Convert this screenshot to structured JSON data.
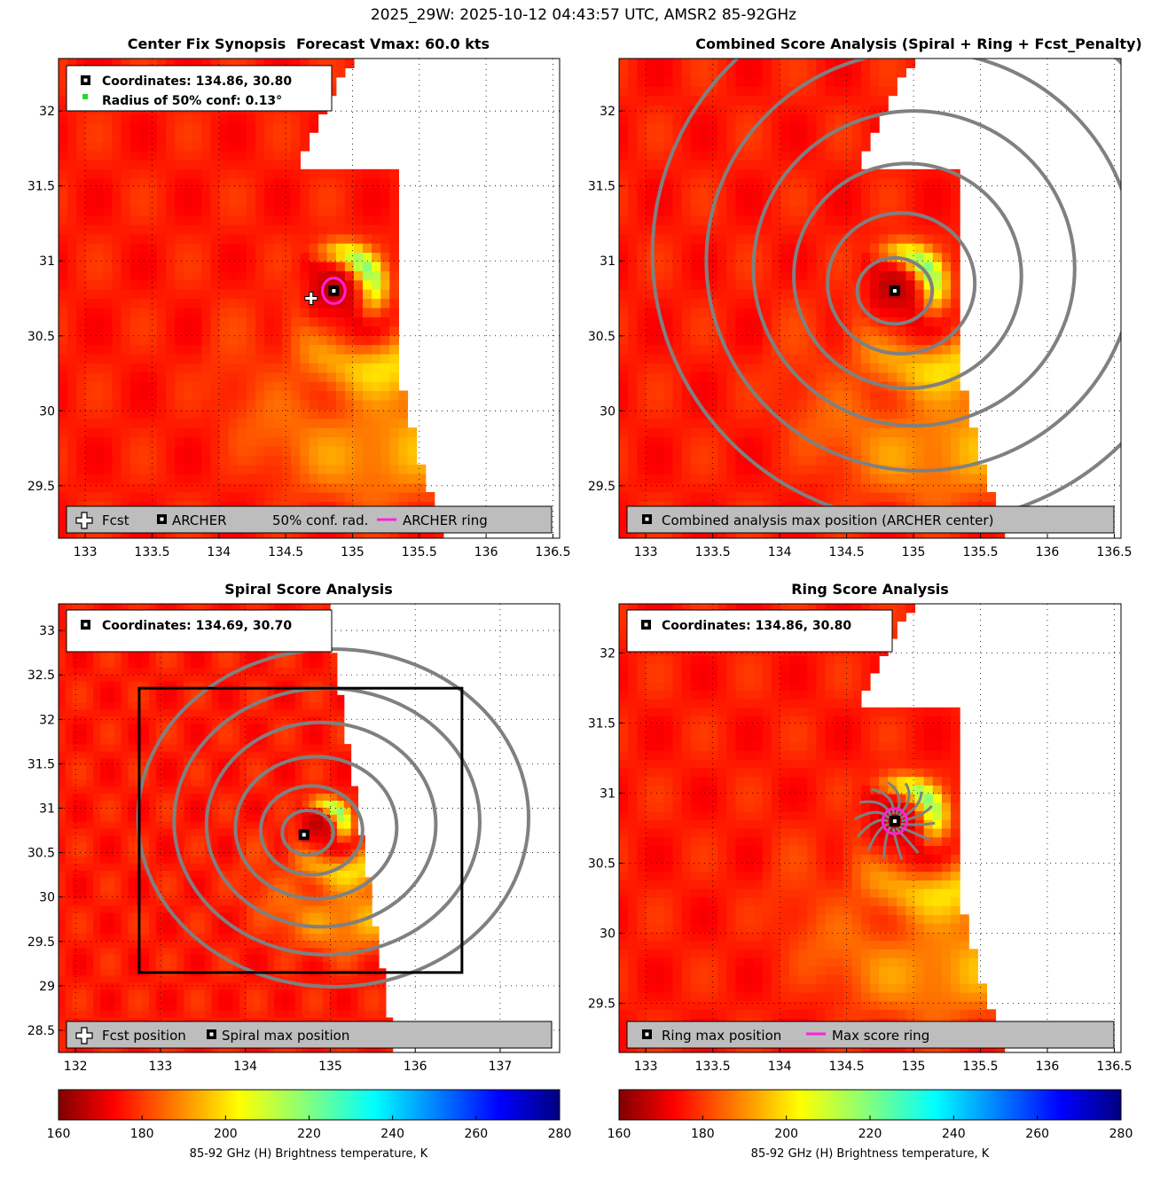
{
  "figure": {
    "title": "2025_29W: 2025-10-12 04:43:57 UTC, AMSR2 85-92GHz"
  },
  "colors": {
    "archer_ring": "#ff22dd",
    "contour": "#808080",
    "legend_bg": "#bdbdbd",
    "box": "#000000"
  },
  "chart_data": [
    {
      "id": "center-fix",
      "type": "heatmap",
      "title_left": "Center Fix Synopsis",
      "title_right": "Forecast Vmax: 60.0 kts",
      "xlim": [
        132.8,
        136.55
      ],
      "ylim": [
        29.15,
        32.35
      ],
      "xticks": [
        133,
        133.5,
        134,
        134.5,
        135,
        135.5,
        136,
        136.5
      ],
      "xtick_labels": [
        "133",
        "133.5",
        "134",
        "134.5",
        "135",
        "135.5",
        "136",
        "136.5"
      ],
      "yticks": [
        29.5,
        30,
        30.5,
        31,
        31.5,
        32
      ],
      "ytick_labels": [
        "29.5",
        "30",
        "30.5",
        "31",
        "31.5",
        "32"
      ],
      "center": [
        134.86,
        30.8
      ],
      "archer_ring_radius_deg": 0.085,
      "conf_radius_deg": 0.13,
      "forecast_position": [
        134.69,
        30.75
      ],
      "info_lines": [
        "Coordinates: 134.86, 30.80",
        "Radius of 50% conf: 0.13°"
      ],
      "legend": [
        "Fcst",
        "ARCHER",
        "50% conf. rad.",
        "ARCHER ring"
      ]
    },
    {
      "id": "combined",
      "type": "heatmap",
      "title": "Combined Score Analysis (Spiral + Ring + Fcst_Penalty)",
      "xlim": [
        132.8,
        136.55
      ],
      "ylim": [
        29.15,
        32.35
      ],
      "xticks": [
        133,
        133.5,
        134,
        134.5,
        135,
        135.5,
        136,
        136.5
      ],
      "xtick_labels": [
        "133",
        "133.5",
        "134",
        "134.5",
        "135",
        "135.5",
        "136",
        "136.5"
      ],
      "yticks": [
        29.5,
        30,
        30.5,
        31,
        31.5,
        32
      ],
      "ytick_labels": [
        "29.5",
        "30",
        "30.5",
        "31",
        "31.5",
        "32"
      ],
      "center": [
        134.86,
        30.8
      ],
      "legend": [
        "Combined analysis max position (ARCHER center)"
      ]
    },
    {
      "id": "spiral",
      "type": "heatmap",
      "title": "Spiral Score Analysis",
      "xlim": [
        131.8,
        137.7
      ],
      "ylim": [
        28.25,
        33.3
      ],
      "xticks": [
        132,
        133,
        134,
        135,
        136,
        137
      ],
      "xtick_labels": [
        "132",
        "133",
        "134",
        "135",
        "136",
        "137"
      ],
      "yticks": [
        28.5,
        29,
        29.5,
        30,
        30.5,
        31,
        31.5,
        32,
        32.5,
        33
      ],
      "ytick_labels": [
        "28.5",
        "29",
        "29.5",
        "30",
        "30.5",
        "31",
        "31.5",
        "32",
        "32.5",
        "33"
      ],
      "center": [
        134.69,
        30.7
      ],
      "search_box": [
        132.75,
        29.15,
        136.55,
        32.35
      ],
      "info_lines": [
        "Coordinates: 134.69, 30.70"
      ],
      "legend": [
        "Fcst position",
        "Spiral max position"
      ]
    },
    {
      "id": "ring",
      "type": "heatmap",
      "title": "Ring Score Analysis",
      "xlim": [
        132.8,
        136.55
      ],
      "ylim": [
        29.15,
        32.35
      ],
      "xticks": [
        133,
        133.5,
        134,
        134.5,
        135,
        135.5,
        136,
        136.5
      ],
      "xtick_labels": [
        "133",
        "133.5",
        "134",
        "134.5",
        "135",
        "135.5",
        "136",
        "136.5"
      ],
      "yticks": [
        29.5,
        30,
        30.5,
        31,
        31.5,
        32
      ],
      "ytick_labels": [
        "29.5",
        "30",
        "30.5",
        "31",
        "31.5",
        "32"
      ],
      "center": [
        134.86,
        30.8
      ],
      "ring_radius_deg": 0.09,
      "info_lines": [
        "Coordinates: 134.86, 30.80"
      ],
      "legend": [
        "Ring max position",
        "Max score ring"
      ]
    }
  ],
  "colorbars": [
    {
      "min": 160,
      "max": 280,
      "ticks": [
        160,
        180,
        200,
        220,
        240,
        260,
        280
      ],
      "tick_labels": [
        "160",
        "180",
        "200",
        "220",
        "240",
        "260",
        "280"
      ],
      "label": "85-92 GHz (H) Brightness temperature, K"
    },
    {
      "min": 160,
      "max": 280,
      "ticks": [
        160,
        180,
        200,
        220,
        240,
        260,
        280
      ],
      "tick_labels": [
        "160",
        "180",
        "200",
        "220",
        "240",
        "260",
        "280"
      ],
      "label": "85-92 GHz (H) Brightness temperature, K"
    }
  ]
}
